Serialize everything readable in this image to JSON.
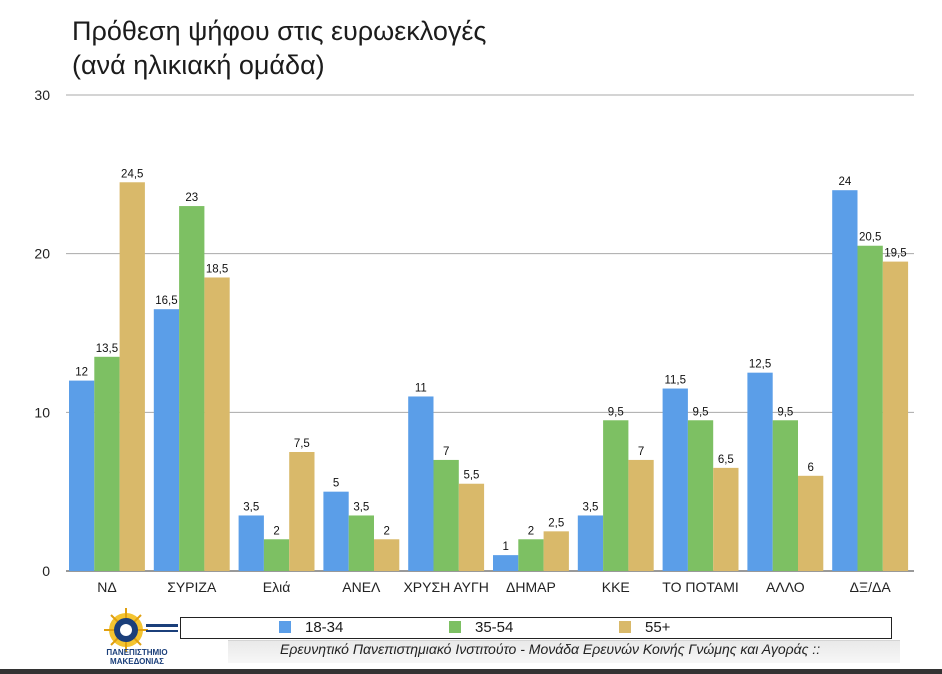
{
  "chart_data": {
    "type": "bar",
    "title_lines": [
      "Πρόθεση ψήφου στις ευρωεκλογές",
      "(ανά ηλικιακή ομάδα)"
    ],
    "categories": [
      "ΝΔ",
      "ΣΥΡΙΖΑ",
      "Ελιά",
      "ΑΝΕΛ",
      "ΧΡΥΣΗ ΑΥΓΗ",
      "ΔΗΜΑΡ",
      "ΚΚΕ",
      "ΤΟ ΠΟΤΑΜΙ",
      "ΑΛΛΟ",
      "ΔΞ/ΔΑ"
    ],
    "series": [
      {
        "name": "18-34",
        "color": "#5b9ee8",
        "values": [
          12,
          16.5,
          3.5,
          5,
          11,
          1,
          3.5,
          11.5,
          12.5,
          24
        ]
      },
      {
        "name": "35-54",
        "color": "#7dc063",
        "values": [
          13.5,
          23,
          2,
          3.5,
          7,
          2,
          9.5,
          9.5,
          9.5,
          20.5
        ]
      },
      {
        "name": "55+",
        "color": "#d9b96a",
        "values": [
          24.5,
          18.5,
          7.5,
          2,
          5.5,
          2.5,
          7,
          6.5,
          6,
          19.5
        ]
      }
    ],
    "ylim": [
      0,
      30
    ],
    "yticks": [
      0,
      10,
      20,
      30
    ],
    "grid": true,
    "legend_position": "bottom"
  },
  "footer": {
    "source": "Ερευνητικό Πανεπιστημιακό Ινστιτούτο - Μονάδα Ερευνών Κοινής Γνώμης και Αγοράς ::",
    "logo_text_top": "ΠΑΝΕΠΙΣΤΗΜΙΟ",
    "logo_text_bottom": "ΜΑΚΕΔΟΝΙΑΣ"
  }
}
